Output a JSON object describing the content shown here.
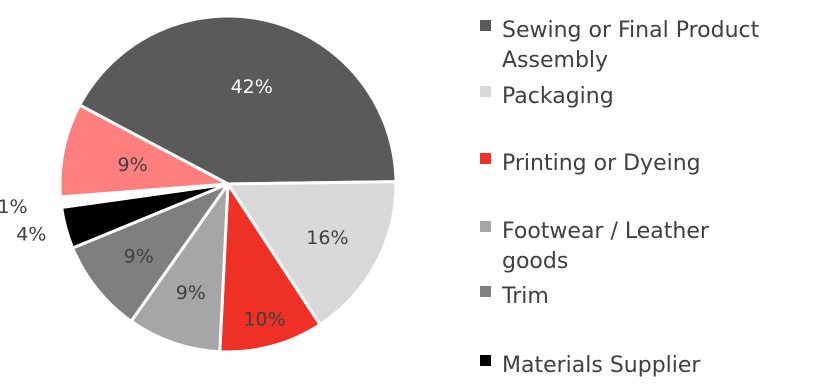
{
  "chart_data": {
    "type": "pie",
    "title": "",
    "slices": [
      {
        "label": "Sewing or Final Product Assembly",
        "value": 42,
        "display": "42%",
        "color": "#5a5a5a",
        "text_color": "#ffffff"
      },
      {
        "label": "Packaging",
        "value": 16,
        "display": "16%",
        "color": "#d9d9d9",
        "text_color": "#404040"
      },
      {
        "label": "Printing or Dyeing",
        "value": 10,
        "display": "10%",
        "color": "#ee3124",
        "text_color": "#404040"
      },
      {
        "label": "Footwear / Leather goods",
        "value": 9,
        "display": "9%",
        "color": "#a6a6a6",
        "text_color": "#404040"
      },
      {
        "label": "Trim",
        "value": 9,
        "display": "9%",
        "color": "#7f7f7f",
        "text_color": "#404040"
      },
      {
        "label": "Materials Supplier",
        "value": 4,
        "display": "4%",
        "color": "#000000",
        "text_color": "#404040"
      },
      {
        "label": "",
        "value": 1,
        "display": "1%",
        "color": "#ffffff",
        "text_color": "#404040"
      },
      {
        "label": "",
        "value": 9,
        "display": "9%",
        "color": "#ff7f7f",
        "text_color": "#404040"
      }
    ],
    "legend": {
      "placement": "right",
      "entries": [
        {
          "lines": [
            "Sewing or Final Product",
            "Assembly"
          ],
          "color": "#5a5a5a"
        },
        {
          "lines": [
            "Packaging"
          ],
          "color": "#d9d9d9"
        },
        {
          "lines": [
            "Printing or Dyeing"
          ],
          "color": "#ee3124"
        },
        {
          "lines": [
            "Footwear / Leather",
            "goods"
          ],
          "color": "#a6a6a6"
        },
        {
          "lines": [
            "Trim"
          ],
          "color": "#7f7f7f"
        },
        {
          "lines": [
            "Materials Supplier"
          ],
          "color": "#000000"
        }
      ]
    }
  }
}
